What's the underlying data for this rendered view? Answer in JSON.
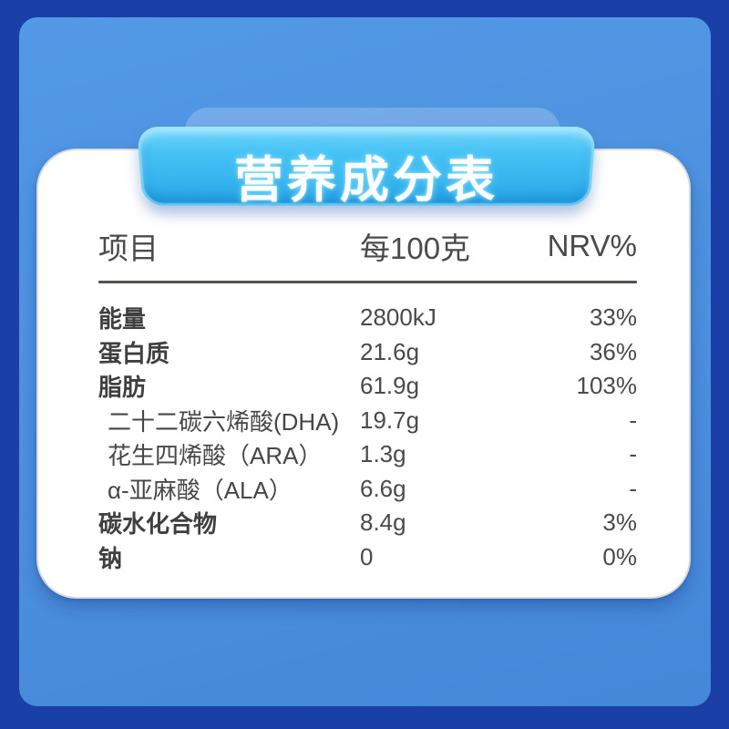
{
  "banner": {
    "label": "营养成分表"
  },
  "chart_data": {
    "type": "table",
    "title": "营养成分表",
    "columns": [
      "项目",
      "每100克",
      "NRV%"
    ],
    "rows": [
      [
        "能量",
        "2800kJ",
        "33%"
      ],
      [
        "蛋白质",
        "21.6g",
        "36%"
      ],
      [
        "脂肪",
        "61.9g",
        "103%"
      ],
      [
        "二十二碳六烯酸(DHA)",
        "19.7g",
        "-"
      ],
      [
        "花生四烯酸（ARA）",
        "1.3g",
        "-"
      ],
      [
        "α-亚麻酸（ALA）",
        "6.6g",
        "-"
      ],
      [
        "碳水化合物",
        "8.4g",
        "3%"
      ],
      [
        "钠",
        "0",
        "0%"
      ]
    ]
  },
  "table": {
    "row_meta": [
      {
        "bold": true,
        "indent": false
      },
      {
        "bold": true,
        "indent": false
      },
      {
        "bold": true,
        "indent": false
      },
      {
        "bold": false,
        "indent": true
      },
      {
        "bold": false,
        "indent": true
      },
      {
        "bold": false,
        "indent": true
      },
      {
        "bold": true,
        "indent": false
      },
      {
        "bold": true,
        "indent": false
      }
    ]
  },
  "colors": {
    "outer_border_navy": "#1A3FA7",
    "panel_blue_top": "#5299E6",
    "panel_blue_bottom": "#4587D8",
    "banner_cyan": "#3ABAF1",
    "banner_glow": "#8CE6FF",
    "card_background": "#FFFFFF",
    "card_border": "#DBDBDB",
    "header_text": "#4B4B4B",
    "label_text": "#3F3F3F",
    "value_text": "#4A4A4A",
    "divider": "#55514C",
    "title_text": "#FFFFFF"
  }
}
